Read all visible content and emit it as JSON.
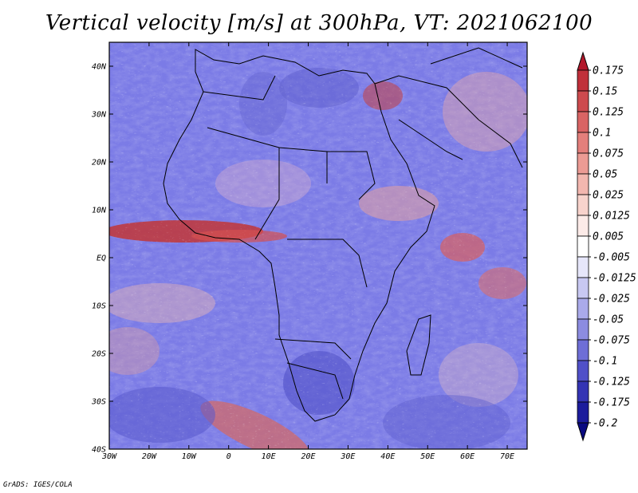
{
  "title": "Vertical velocity [m/s] at 300hPa, VT: 2021062100",
  "credit": "GrADS: IGES/COLA",
  "map": {
    "region": "Africa",
    "lon_range": [
      -30,
      75
    ],
    "lat_range": [
      -40,
      45
    ],
    "lat_ticks": [
      "40N",
      "30N",
      "20N",
      "10N",
      "EQ",
      "10S",
      "20S",
      "30S",
      "40S"
    ],
    "lon_ticks": [
      "30W",
      "20W",
      "10W",
      "0",
      "10E",
      "20E",
      "30E",
      "40E",
      "50E",
      "60E",
      "70E"
    ]
  },
  "colorbar": {
    "levels": [
      "0.175",
      "0.15",
      "0.125",
      "0.1",
      "0.075",
      "0.05",
      "0.025",
      "0.0125",
      "0.005",
      "-0.005",
      "-0.0125",
      "-0.025",
      "-0.05",
      "-0.075",
      "-0.1",
      "-0.125",
      "-0.175",
      "-0.2"
    ],
    "colors": [
      "#b2182b",
      "#c0303a",
      "#cd4a4e",
      "#d96464",
      "#e37f7b",
      "#ec9b94",
      "#f3b7af",
      "#f8d3cc",
      "#fcebe8",
      "#ffffff",
      "#e6e6fa",
      "#c8c8f2",
      "#aaaaea",
      "#8c8ce0",
      "#6e6ed6",
      "#5050c8",
      "#3434b4",
      "#1c1c9c",
      "#0a0a80"
    ]
  },
  "palette": {
    "blue": "#7b7be6",
    "light_blue": "#b4b4f0",
    "red": "#e06a6a",
    "dark_red": "#b42a2a",
    "land_line": "#000000"
  }
}
